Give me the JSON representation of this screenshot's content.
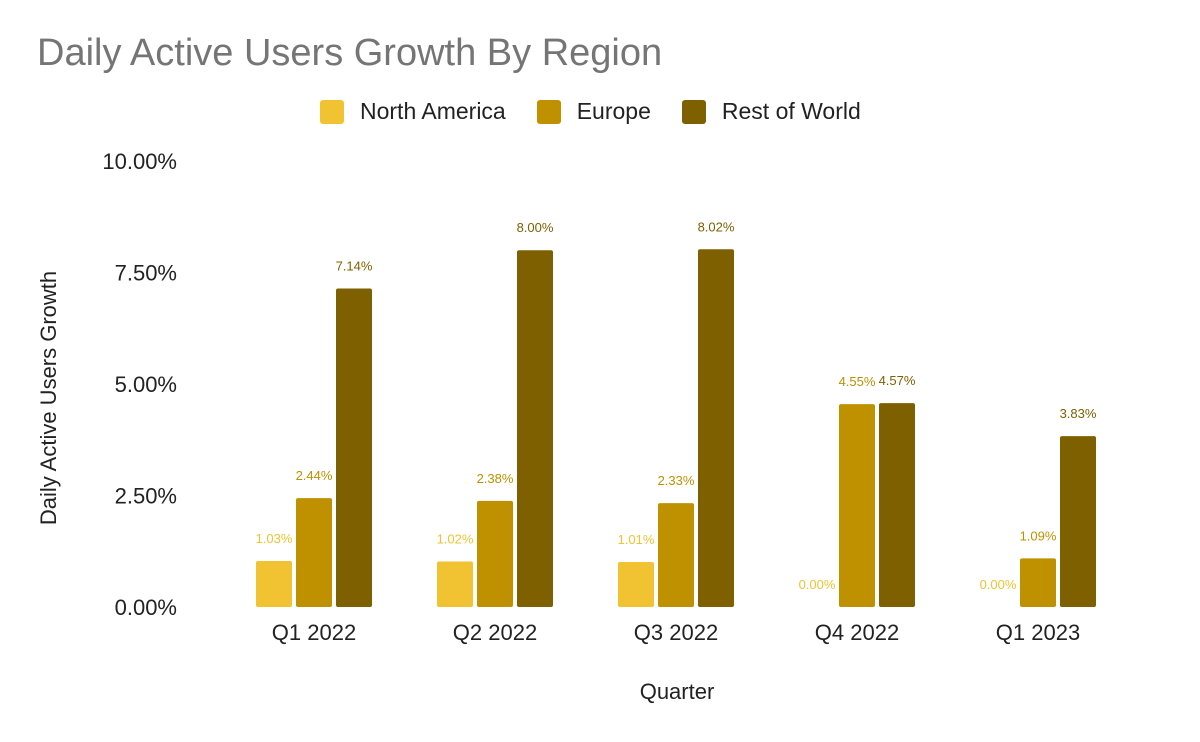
{
  "chart_data": {
    "type": "bar",
    "title": "Daily Active Users Growth By Region",
    "xlabel": "Quarter",
    "ylabel": "Daily Active Users Growth",
    "ylim": [
      0,
      10
    ],
    "yticks": [
      "0.00%",
      "2.50%",
      "5.00%",
      "7.50%",
      "10.00%"
    ],
    "ytick_values": [
      0,
      2.5,
      5,
      7.5,
      10
    ],
    "categories": [
      "Q1 2022",
      "Q2 2022",
      "Q3 2022",
      "Q4 2022",
      "Q1 2023"
    ],
    "series": [
      {
        "name": "North America",
        "color": "#f1c232",
        "values": [
          1.03,
          1.02,
          1.01,
          0.0,
          0.0
        ],
        "labels": [
          "1.03%",
          "1.02%",
          "1.01%",
          "0.00%",
          "0.00%"
        ]
      },
      {
        "name": "Europe",
        "color": "#bf9000",
        "values": [
          2.44,
          2.38,
          2.33,
          4.55,
          1.09
        ],
        "labels": [
          "2.44%",
          "2.38%",
          "2.33%",
          "4.55%",
          "1.09%"
        ]
      },
      {
        "name": "Rest of World",
        "color": "#7f6000",
        "values": [
          7.14,
          8.0,
          8.02,
          4.57,
          3.83
        ],
        "labels": [
          "7.14%",
          "8.00%",
          "8.02%",
          "4.57%",
          "3.83%"
        ]
      }
    ],
    "legend_position": "top",
    "grid": false
  }
}
